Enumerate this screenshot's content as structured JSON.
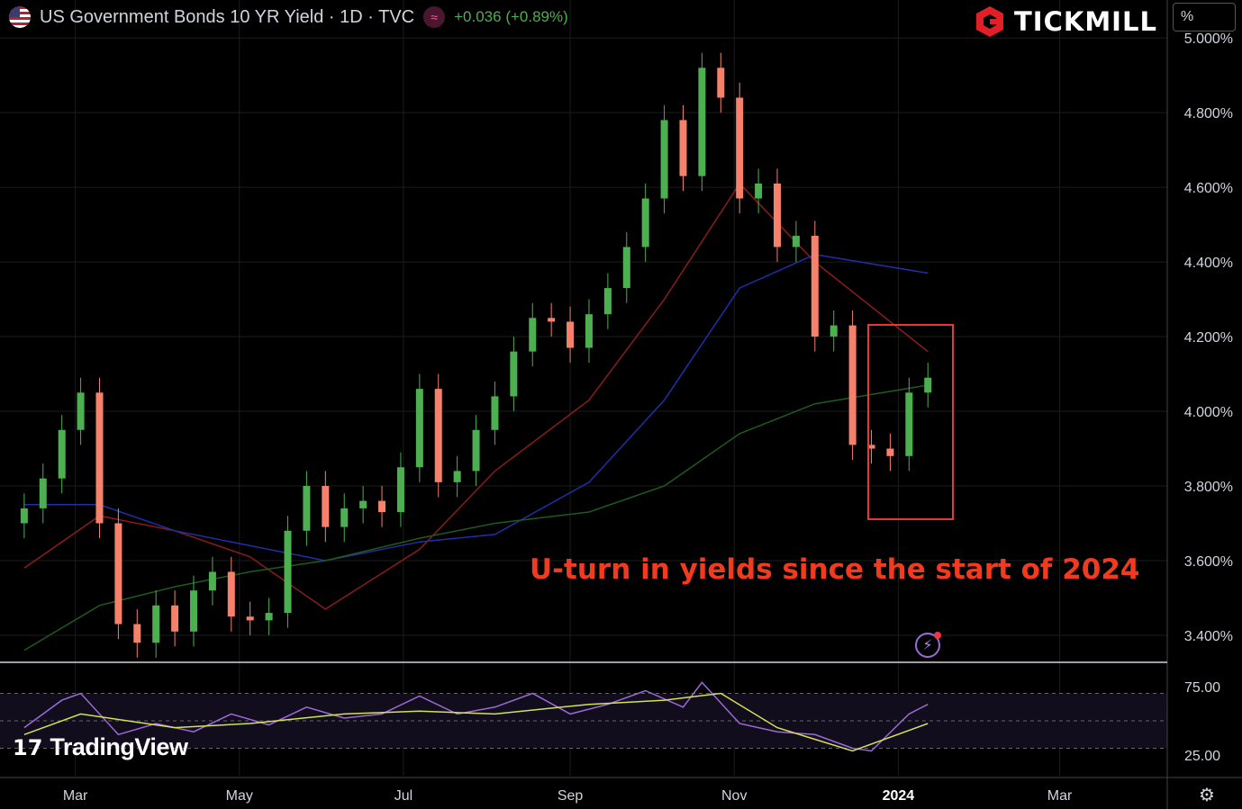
{
  "header": {
    "symbol_title": "US Government Bonds 10 YR Yield · 1D · TVC",
    "indicator_glyph": "≈",
    "change_text": "+0.036 (+0.89%)",
    "flag_icon": "us-flag-icon"
  },
  "brand": {
    "name": "TICKMILL",
    "logo_icon": "tickmill-hexagon-logo-icon"
  },
  "price_scale": {
    "unit_label": "%"
  },
  "watermark": {
    "mark": "17",
    "text": "TradingView"
  },
  "annotation": {
    "text": "U-turn in yields since the start of 2024",
    "color": "#f23a1f"
  },
  "colors": {
    "background": "#000000",
    "up_candle": "#4caf50",
    "down_candle": "#f6816a",
    "ma_fast": "#8b1c1c",
    "ma_mid": "#1f2fa8",
    "ma_slow": "#1f5a1f",
    "rsi_line": "#9c6ad8",
    "rsi_ma": "#d4e157",
    "highlight_box": "#e53935"
  },
  "chart_data": [
    {
      "type": "line",
      "subtype": "candlestick",
      "title": "US Government Bonds 10 YR Yield · 1D · TVC",
      "y_unit": "%",
      "ylim": [
        3.33,
        5.01
      ],
      "y_ticks": [
        "5.000%",
        "4.800%",
        "4.600%",
        "4.400%",
        "4.200%",
        "4.000%",
        "3.800%",
        "3.600%",
        "3.400%"
      ],
      "x_ticks": [
        "Mar",
        "May",
        "Jul",
        "Sep",
        "Nov",
        "2024",
        "Mar"
      ],
      "grid": true,
      "series": [
        {
          "name": "Price",
          "style": "candles",
          "x": [
            "2023-02-10",
            "2023-02-17",
            "2023-02-24",
            "2023-03-03",
            "2023-03-10",
            "2023-03-17",
            "2023-03-24",
            "2023-03-31",
            "2023-04-07",
            "2023-04-14",
            "2023-04-21",
            "2023-04-28",
            "2023-05-05",
            "2023-05-12",
            "2023-05-19",
            "2023-05-26",
            "2023-06-02",
            "2023-06-09",
            "2023-06-16",
            "2023-06-23",
            "2023-06-30",
            "2023-07-07",
            "2023-07-14",
            "2023-07-21",
            "2023-07-28",
            "2023-08-04",
            "2023-08-11",
            "2023-08-18",
            "2023-08-25",
            "2023-09-01",
            "2023-09-08",
            "2023-09-15",
            "2023-09-22",
            "2023-09-29",
            "2023-10-06",
            "2023-10-13",
            "2023-10-20",
            "2023-10-27",
            "2023-11-03",
            "2023-11-10",
            "2023-11-17",
            "2023-11-24",
            "2023-12-01",
            "2023-12-08",
            "2023-12-15",
            "2023-12-22",
            "2023-12-29",
            "2024-01-05",
            "2024-01-12"
          ],
          "close": [
            3.74,
            3.82,
            3.95,
            4.05,
            3.7,
            3.43,
            3.38,
            3.48,
            3.41,
            3.52,
            3.57,
            3.45,
            3.44,
            3.46,
            3.68,
            3.8,
            3.69,
            3.74,
            3.76,
            3.73,
            3.85,
            4.06,
            3.81,
            3.84,
            3.95,
            4.04,
            4.16,
            4.25,
            4.24,
            4.17,
            4.26,
            4.33,
            4.44,
            4.57,
            4.78,
            4.63,
            4.92,
            4.84,
            4.57,
            4.61,
            4.44,
            4.47,
            4.2,
            4.23,
            3.91,
            3.9,
            3.88,
            4.05,
            4.09
          ]
        },
        {
          "name": "MA 50",
          "style": "line",
          "x": [
            "2023-02-10",
            "2023-03-10",
            "2023-04-07",
            "2023-05-05",
            "2023-06-02",
            "2023-07-07",
            "2023-08-04",
            "2023-09-08",
            "2023-10-06",
            "2023-11-03",
            "2023-12-01",
            "2024-01-12"
          ],
          "y": [
            3.58,
            3.72,
            3.68,
            3.61,
            3.47,
            3.63,
            3.84,
            4.03,
            4.3,
            4.61,
            4.4,
            4.16
          ]
        },
        {
          "name": "MA 100",
          "style": "line",
          "x": [
            "2023-02-10",
            "2023-03-10",
            "2023-04-07",
            "2023-05-05",
            "2023-06-02",
            "2023-07-07",
            "2023-08-04",
            "2023-09-08",
            "2023-10-06",
            "2023-11-03",
            "2023-12-01",
            "2024-01-12"
          ],
          "y": [
            3.75,
            3.75,
            3.68,
            3.64,
            3.6,
            3.65,
            3.67,
            3.81,
            4.03,
            4.33,
            4.42,
            4.37
          ]
        },
        {
          "name": "MA 200",
          "style": "line",
          "x": [
            "2023-02-10",
            "2023-03-10",
            "2023-04-07",
            "2023-05-05",
            "2023-06-02",
            "2023-07-07",
            "2023-08-04",
            "2023-09-08",
            "2023-10-06",
            "2023-11-03",
            "2023-12-01",
            "2024-01-12"
          ],
          "y": [
            3.36,
            3.48,
            3.53,
            3.57,
            3.6,
            3.66,
            3.7,
            3.73,
            3.8,
            3.94,
            4.02,
            4.07
          ]
        }
      ],
      "annotations": [
        "U-turn in yields since the start of 2024"
      ]
    },
    {
      "type": "line",
      "title": "",
      "ylim": [
        10,
        90
      ],
      "y_ticks": [
        "75.00",
        "25.00"
      ],
      "grid": false,
      "series": [
        {
          "name": "RSI",
          "style": "line",
          "x": [
            "2023-02-10",
            "2023-02-24",
            "2023-03-03",
            "2023-03-17",
            "2023-03-31",
            "2023-04-14",
            "2023-04-28",
            "2023-05-12",
            "2023-05-26",
            "2023-06-09",
            "2023-06-23",
            "2023-07-07",
            "2023-07-21",
            "2023-08-04",
            "2023-08-18",
            "2023-09-01",
            "2023-09-15",
            "2023-09-29",
            "2023-10-13",
            "2023-10-20",
            "2023-11-03",
            "2023-11-17",
            "2023-12-01",
            "2023-12-15",
            "2023-12-22",
            "2024-01-05",
            "2024-01-12"
          ],
          "y": [
            45,
            65,
            70,
            40,
            48,
            42,
            55,
            47,
            60,
            52,
            55,
            68,
            55,
            60,
            70,
            55,
            62,
            72,
            60,
            78,
            48,
            42,
            40,
            30,
            28,
            55,
            62
          ]
        },
        {
          "name": "RSI MA",
          "style": "line",
          "x": [
            "2023-02-10",
            "2023-03-03",
            "2023-04-07",
            "2023-05-05",
            "2023-06-09",
            "2023-07-07",
            "2023-08-04",
            "2023-09-08",
            "2023-10-06",
            "2023-10-27",
            "2023-11-17",
            "2023-12-15",
            "2024-01-12"
          ],
          "y": [
            40,
            55,
            45,
            48,
            55,
            57,
            55,
            62,
            65,
            70,
            45,
            28,
            48
          ]
        }
      ]
    }
  ]
}
